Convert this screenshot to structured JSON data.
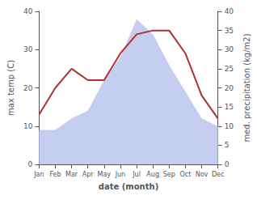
{
  "chart_data": {
    "type": "line",
    "xlabel": "date (month)",
    "ylabel": "max temp (C)",
    "y2label": "med. precipitation (kg/m2)",
    "categories": [
      "Jan",
      "Feb",
      "Mar",
      "Apr",
      "May",
      "Jun",
      "Jul",
      "Aug",
      "Sep",
      "Oct",
      "Nov",
      "Dec"
    ],
    "series": [
      {
        "type": "area",
        "axis": "y2",
        "color": "#c5cdf0",
        "values": [
          9,
          9,
          12,
          14,
          22,
          28,
          38,
          34,
          26,
          19,
          12,
          10
        ]
      },
      {
        "type": "line",
        "color": "#b03030",
        "values": [
          13,
          20,
          25,
          22,
          22,
          29,
          34,
          35,
          35,
          29,
          18,
          12
        ]
      }
    ],
    "ylim": [
      0,
      40
    ],
    "yticks": [
      0,
      10,
      20,
      30,
      40
    ],
    "y2lim": [
      0,
      40
    ],
    "y2ticks": [
      0,
      5,
      10,
      15,
      20,
      25,
      30,
      35,
      40
    ],
    "grid": false
  }
}
